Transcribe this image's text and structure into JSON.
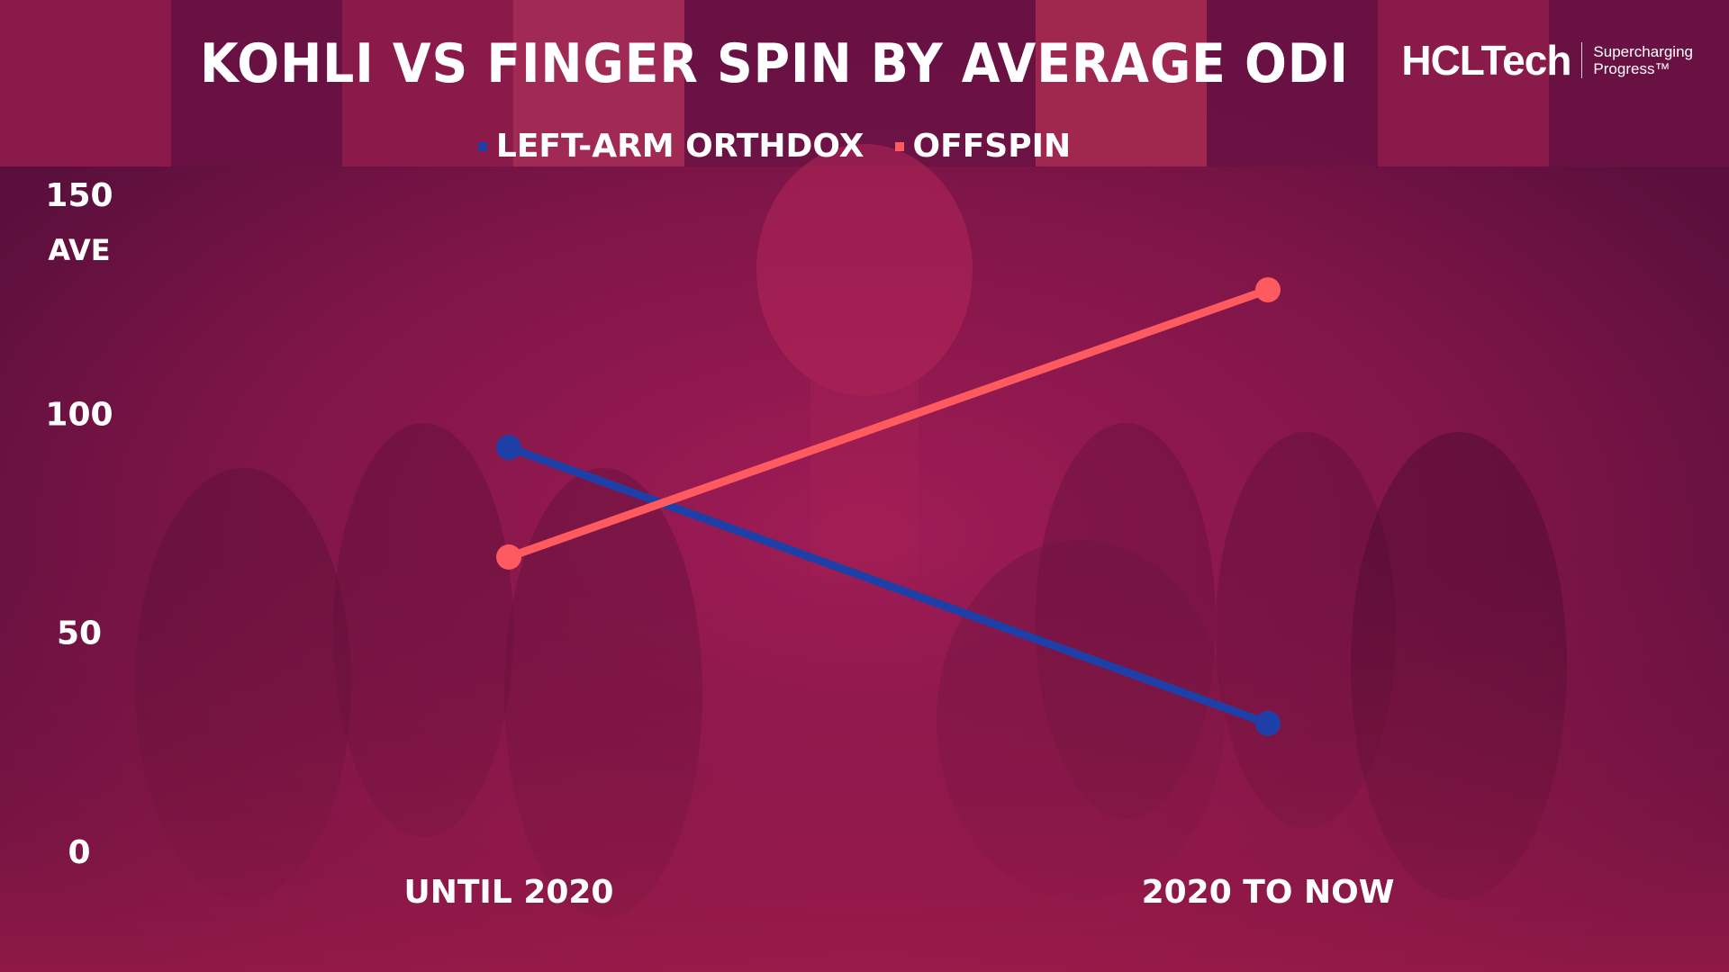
{
  "header": {
    "title": "KOHLI VS FINGER SPIN BY AVERAGE ODI"
  },
  "brand": {
    "name": "HCLTech",
    "tagline_line1": "Supercharging",
    "tagline_line2": "Progress™"
  },
  "colors": {
    "background": "#7a1347",
    "left_arm_orthodox": "#1f3fa8",
    "offspin": "#ff5a5f",
    "text": "#ffffff"
  },
  "chart_data": {
    "type": "line",
    "categories": [
      "UNTIL 2020",
      "2020 TO NOW"
    ],
    "series": [
      {
        "name": "LEFT-ARM ORTHDOX",
        "values": [
          92,
          29
        ]
      },
      {
        "name": "OFFSPIN",
        "values": [
          67,
          128
        ]
      }
    ],
    "ylabel": "AVE",
    "ylim": [
      0,
      150
    ],
    "yticks": [
      0,
      50,
      100,
      150
    ],
    "legend": "top-center",
    "grid": false
  }
}
